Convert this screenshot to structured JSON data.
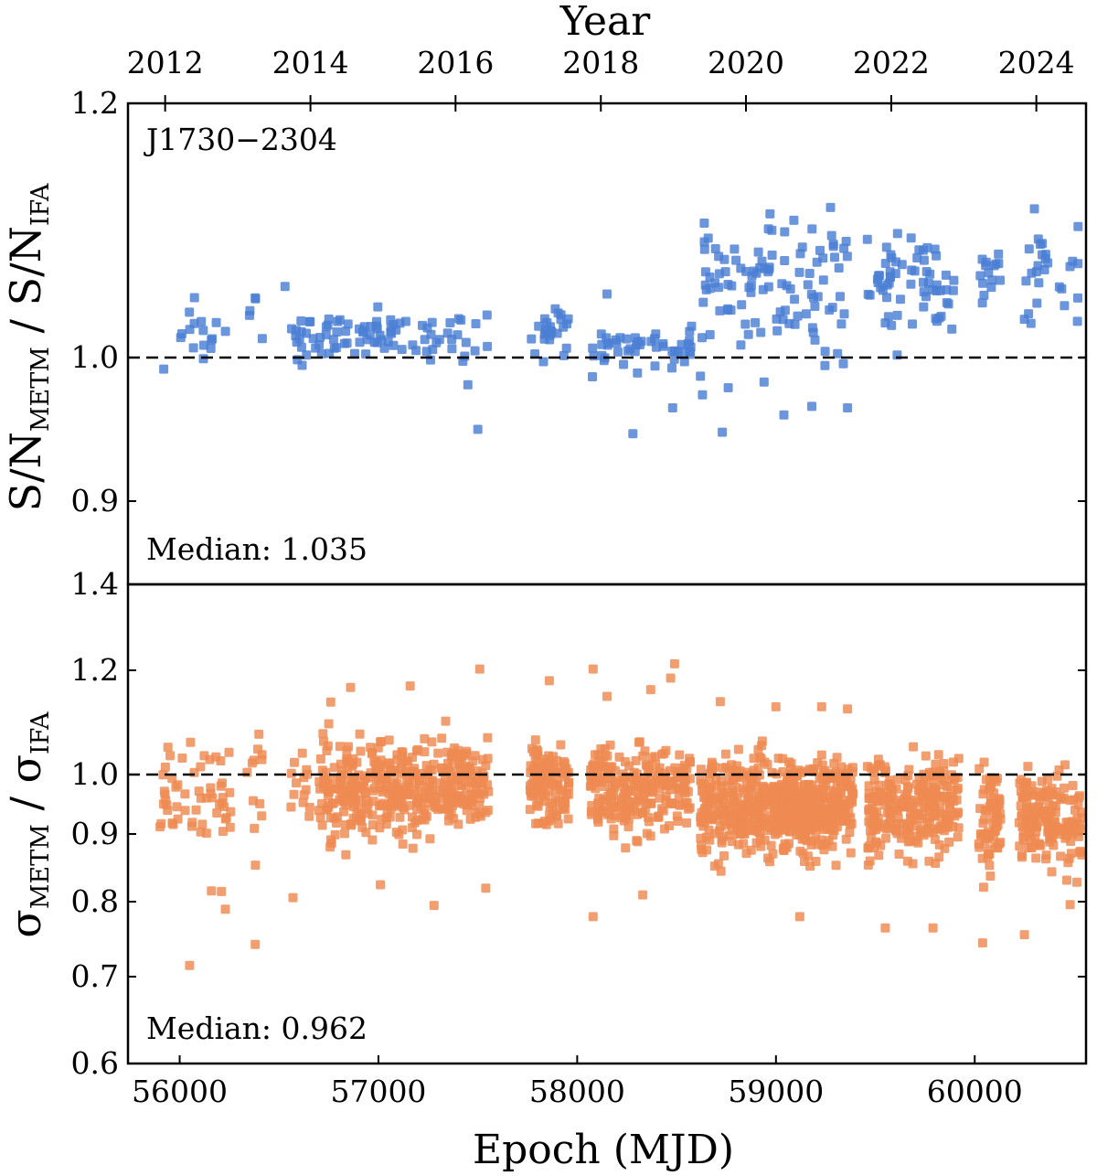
{
  "chart_data": [
    {
      "type": "scatter",
      "panel": "top",
      "pulsar_label": "J1730−2304",
      "xlabel_top": "Year",
      "year_ticks": [
        "2012",
        "2014",
        "2016",
        "2018",
        "2020",
        "2022",
        "2024"
      ],
      "year_tick_mjd": [
        55927,
        56658,
        57388,
        58119,
        58849,
        59580,
        60310
      ],
      "ylabel": {
        "main": "S/N",
        "sub": "METM",
        "sep": " / ",
        "main2": "S/N",
        "sub2": "IFA"
      },
      "ylim": [
        0.85,
        1.2
      ],
      "yticks": [
        "0.9",
        "1.0",
        "1.2"
      ],
      "ytick_values": [
        0.9,
        1.0,
        1.2
      ],
      "reference_line": 1.0,
      "median_text": "Median: 1.035",
      "color": "#4a7fd4",
      "clusters": [
        {
          "x0": 55900,
          "x1": 56250,
          "ymid": 1.02,
          "spread": 0.01,
          "n": 16
        },
        {
          "x0": 56330,
          "x1": 56420,
          "ymid": 1.02,
          "spread": 0.012,
          "n": 4
        },
        {
          "x0": 56560,
          "x1": 57560,
          "ymid": 1.017,
          "spread": 0.01,
          "n": 90
        },
        {
          "x0": 57760,
          "x1": 57960,
          "ymid": 1.016,
          "spread": 0.01,
          "n": 26
        },
        {
          "x0": 58060,
          "x1": 58580,
          "ymid": 1.007,
          "spread": 0.009,
          "n": 48
        },
        {
          "x0": 58620,
          "x1": 59380,
          "ymid": 1.055,
          "spread": 0.025,
          "n": 100
        },
        {
          "x0": 59460,
          "x1": 59900,
          "ymid": 1.06,
          "spread": 0.02,
          "n": 60
        },
        {
          "x0": 60020,
          "x1": 60130,
          "ymid": 1.065,
          "spread": 0.012,
          "n": 15
        },
        {
          "x0": 60240,
          "x1": 60520,
          "ymid": 1.06,
          "spread": 0.022,
          "n": 26
        }
      ],
      "points": [
        {
          "x": 55920,
          "y": 0.992
        },
        {
          "x": 56530,
          "y": 1.056
        },
        {
          "x": 56380,
          "y": 1.047
        },
        {
          "x": 57500,
          "y": 0.95
        },
        {
          "x": 57450,
          "y": 0.981
        },
        {
          "x": 58150,
          "y": 1.05
        },
        {
          "x": 58280,
          "y": 0.947
        },
        {
          "x": 58480,
          "y": 0.965
        },
        {
          "x": 58620,
          "y": 0.987
        },
        {
          "x": 58630,
          "y": 0.974
        },
        {
          "x": 58730,
          "y": 0.948
        },
        {
          "x": 58760,
          "y": 0.979
        },
        {
          "x": 58940,
          "y": 0.983
        },
        {
          "x": 59040,
          "y": 0.96
        },
        {
          "x": 59180,
          "y": 0.966
        },
        {
          "x": 59360,
          "y": 0.965
        },
        {
          "x": 58640,
          "y": 1.091
        },
        {
          "x": 58970,
          "y": 1.113
        },
        {
          "x": 59090,
          "y": 1.108
        },
        {
          "x": 59280,
          "y": 1.096
        },
        {
          "x": 59460,
          "y": 1.093
        },
        {
          "x": 59680,
          "y": 1.094
        },
        {
          "x": 60300,
          "y": 1.117
        },
        {
          "x": 60520,
          "y": 1.103
        },
        {
          "x": 59610,
          "y": 1.002
        },
        {
          "x": 59310,
          "y": 1.003
        }
      ]
    },
    {
      "type": "scatter",
      "panel": "bottom",
      "xlabel": "Epoch (MJD)",
      "xticks": [
        "56000",
        "57000",
        "58000",
        "59000",
        "60000"
      ],
      "xtick_values": [
        56000,
        57000,
        58000,
        59000,
        60000
      ],
      "xlim": [
        55740,
        60560
      ],
      "ylabel": {
        "main": "σ",
        "sub": "METM",
        "sep": " / ",
        "main2": "σ",
        "sub2": "IFA"
      },
      "ylim": [
        0.6,
        1.4
      ],
      "yticks": [
        "0.6",
        "0.7",
        "0.8",
        "0.9",
        "1.0",
        "1.2",
        "1.4"
      ],
      "ytick_values": [
        0.6,
        0.7,
        0.8,
        0.9,
        1.0,
        1.2,
        1.4
      ],
      "reference_line": 1.0,
      "median_text": "Median: 0.962",
      "color": "#ee8a52",
      "clusters": [
        {
          "x0": 55900,
          "x1": 56270,
          "ymid": 0.975,
          "spread": 0.04,
          "n": 55
        },
        {
          "x0": 56330,
          "x1": 56420,
          "ymid": 0.975,
          "spread": 0.05,
          "n": 12
        },
        {
          "x0": 56560,
          "x1": 56660,
          "ymid": 0.96,
          "spread": 0.04,
          "n": 14
        },
        {
          "x0": 56700,
          "x1": 57560,
          "ymid": 0.98,
          "spread": 0.04,
          "n": 420
        },
        {
          "x0": 57760,
          "x1": 57960,
          "ymid": 0.985,
          "spread": 0.035,
          "n": 120
        },
        {
          "x0": 58060,
          "x1": 58580,
          "ymid": 0.975,
          "spread": 0.038,
          "n": 240
        },
        {
          "x0": 58620,
          "x1": 59390,
          "ymid": 0.95,
          "spread": 0.04,
          "n": 620
        },
        {
          "x0": 59460,
          "x1": 59920,
          "ymid": 0.945,
          "spread": 0.04,
          "n": 260
        },
        {
          "x0": 60020,
          "x1": 60130,
          "ymid": 0.935,
          "spread": 0.045,
          "n": 70
        },
        {
          "x0": 60220,
          "x1": 60540,
          "ymid": 0.925,
          "spread": 0.04,
          "n": 160
        }
      ],
      "points": [
        {
          "x": 56050,
          "y": 0.715
        },
        {
          "x": 56380,
          "y": 0.743
        },
        {
          "x": 56230,
          "y": 0.79
        },
        {
          "x": 56210,
          "y": 0.815
        },
        {
          "x": 56160,
          "y": 0.816
        },
        {
          "x": 56570,
          "y": 0.806
        },
        {
          "x": 57010,
          "y": 0.825
        },
        {
          "x": 57280,
          "y": 0.795
        },
        {
          "x": 57540,
          "y": 0.82
        },
        {
          "x": 58080,
          "y": 0.78
        },
        {
          "x": 58330,
          "y": 0.81
        },
        {
          "x": 59120,
          "y": 0.78
        },
        {
          "x": 59550,
          "y": 0.765
        },
        {
          "x": 59790,
          "y": 0.765
        },
        {
          "x": 60040,
          "y": 0.745
        },
        {
          "x": 60250,
          "y": 0.756
        },
        {
          "x": 60480,
          "y": 0.796
        },
        {
          "x": 58490,
          "y": 1.215
        },
        {
          "x": 57510,
          "y": 1.203
        },
        {
          "x": 58080,
          "y": 1.203
        },
        {
          "x": 56860,
          "y": 1.167
        },
        {
          "x": 57160,
          "y": 1.17
        },
        {
          "x": 57860,
          "y": 1.18
        },
        {
          "x": 58470,
          "y": 1.185
        },
        {
          "x": 56760,
          "y": 1.139
        },
        {
          "x": 58150,
          "y": 1.15
        },
        {
          "x": 58720,
          "y": 1.14
        },
        {
          "x": 59000,
          "y": 1.13
        },
        {
          "x": 59230,
          "y": 1.13
        },
        {
          "x": 59360,
          "y": 1.126
        },
        {
          "x": 58370,
          "y": 1.163
        }
      ]
    }
  ]
}
